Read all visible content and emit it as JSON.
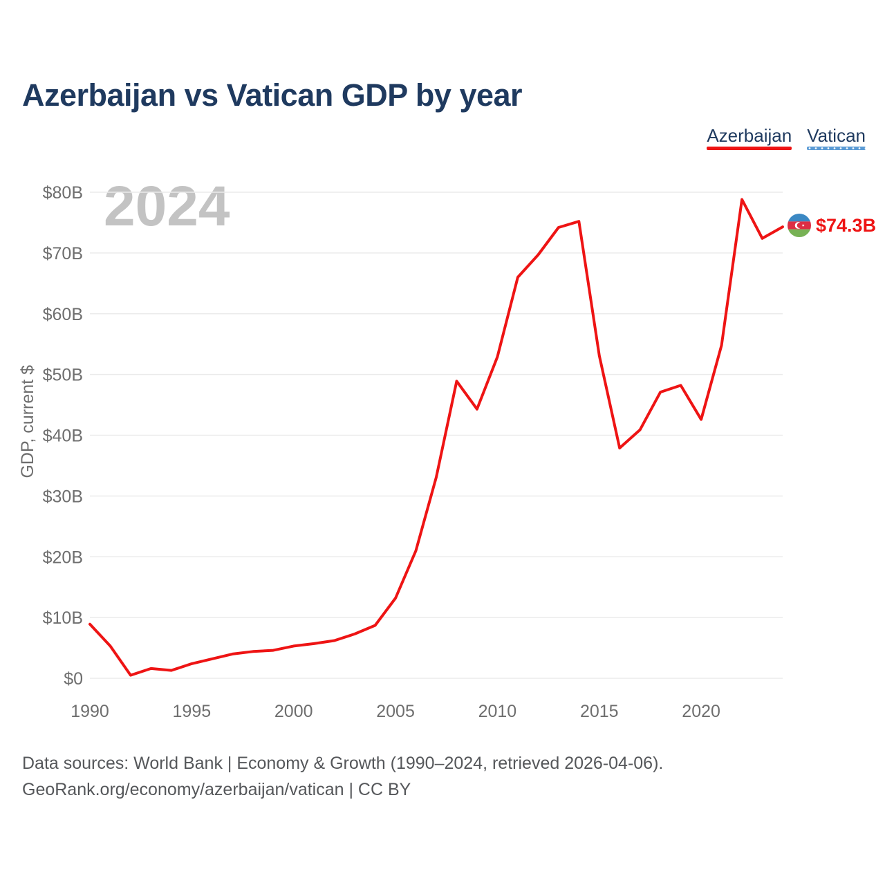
{
  "title": "Azerbaijan vs Vatican GDP by year",
  "watermark": "2024",
  "legend": {
    "items": [
      {
        "label": "Azerbaijan",
        "color": "#ee1414",
        "style": "solid"
      },
      {
        "label": "Vatican",
        "color": "#5b9bd5",
        "style": "dotted"
      }
    ]
  },
  "end_label": {
    "value": "$74.3B",
    "flag": "azerbaijan-flag",
    "color": "#ee1414"
  },
  "footer": {
    "line1": "Data sources: World Bank | Economy & Growth (1990–2024, retrieved 2026-04-06).",
    "line2": "GeoRank.org/economy/azerbaijan/vatican | CC BY"
  },
  "chart_data": {
    "type": "line",
    "title": "Azerbaijan vs Vatican GDP by year",
    "xlabel": "",
    "ylabel": "GDP, current $",
    "xlim": [
      1990,
      2024
    ],
    "ylim": [
      0,
      80
    ],
    "grid": true,
    "legend_position": "top-right",
    "x": [
      1990,
      1991,
      1992,
      1993,
      1994,
      1995,
      1996,
      1997,
      1998,
      1999,
      2000,
      2001,
      2002,
      2003,
      2004,
      2005,
      2006,
      2007,
      2008,
      2009,
      2010,
      2011,
      2012,
      2013,
      2014,
      2015,
      2016,
      2017,
      2018,
      2019,
      2020,
      2021,
      2022,
      2023,
      2024
    ],
    "series": [
      {
        "name": "Azerbaijan",
        "color": "#ee1414",
        "values": [
          8.9,
          5.3,
          0.5,
          1.6,
          1.3,
          2.4,
          3.2,
          4.0,
          4.4,
          4.6,
          5.3,
          5.7,
          6.2,
          7.3,
          8.7,
          13.2,
          21.0,
          33.1,
          48.9,
          44.3,
          52.9,
          66.0,
          69.7,
          74.2,
          75.2,
          53.1,
          37.9,
          40.9,
          47.1,
          48.2,
          42.6,
          54.8,
          78.8,
          72.4,
          74.3
        ]
      },
      {
        "name": "Vatican",
        "color": "#5b9bd5",
        "values": []
      }
    ],
    "x_ticks": [
      1990,
      1995,
      2000,
      2005,
      2010,
      2015,
      2020
    ],
    "y_ticks": [
      {
        "value": 0,
        "label": "$0"
      },
      {
        "value": 10,
        "label": "$10B"
      },
      {
        "value": 20,
        "label": "$20B"
      },
      {
        "value": 30,
        "label": "$30B"
      },
      {
        "value": 40,
        "label": "$40B"
      },
      {
        "value": 50,
        "label": "$50B"
      },
      {
        "value": 60,
        "label": "$60B"
      },
      {
        "value": 70,
        "label": "$70B"
      },
      {
        "value": 80,
        "label": "$80B"
      }
    ]
  }
}
